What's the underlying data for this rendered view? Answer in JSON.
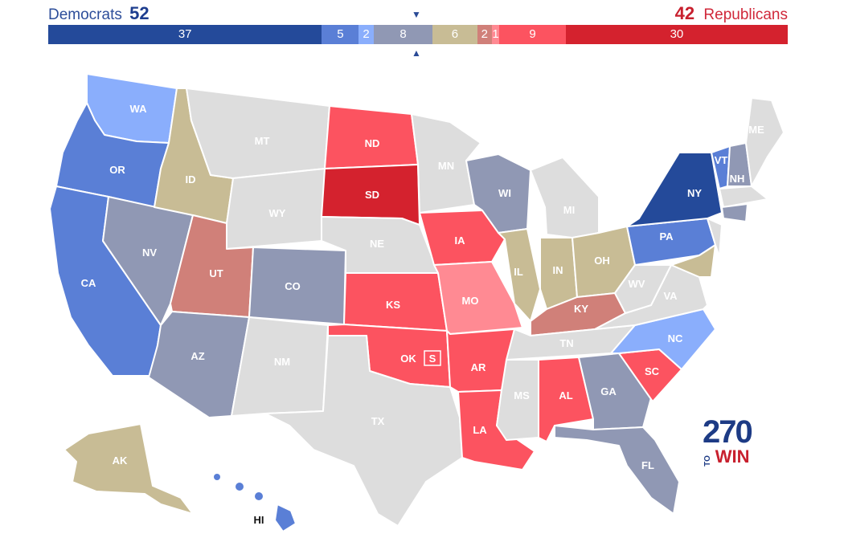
{
  "header": {
    "dem_label": "Democrats",
    "dem_total": "52",
    "rep_total": "42",
    "rep_label": "Republicans"
  },
  "bar": [
    {
      "value": 37,
      "label": "37",
      "color": "#244a9a",
      "category": "safe-dem"
    },
    {
      "value": 5,
      "label": "5",
      "color": "#5a7fd6",
      "category": "likely-dem"
    },
    {
      "value": 2,
      "label": "2",
      "color": "#8aaefc",
      "category": "leans-dem"
    },
    {
      "value": 8,
      "label": "8",
      "color": "#9098b4",
      "category": "tossup"
    },
    {
      "value": 6,
      "label": "6",
      "color": "#c8bc95",
      "category": "tilt-grey"
    },
    {
      "value": 2,
      "label": "2",
      "color": "#d08079",
      "category": "tilt-rep"
    },
    {
      "value": 1,
      "label": "1",
      "color": "#ff8a93",
      "category": "leans-rep"
    },
    {
      "value": 9,
      "label": "9",
      "color": "#fc5360",
      "category": "likely-rep"
    },
    {
      "value": 30,
      "label": "30",
      "color": "#d4222e",
      "category": "safe-rep"
    }
  ],
  "colors": {
    "safe_dem": "#244a9a",
    "likely_dem": "#5a7fd6",
    "leans_dem": "#8aaefc",
    "tossup": "#9098b4",
    "tan": "#c8bc95",
    "tilt_rep": "#d08079",
    "leans_rep": "#ff8a93",
    "likely_rep": "#fc5360",
    "safe_rep": "#d4222e",
    "no_race": "#dddddd",
    "border": "#ffffff"
  },
  "states": {
    "WA": "WA",
    "OR": "OR",
    "CA": "CA",
    "ID": "ID",
    "NV": "NV",
    "MT": "MT",
    "WY": "WY",
    "UT": "UT",
    "AZ": "AZ",
    "CO": "CO",
    "NM": "NM",
    "ND": "ND",
    "SD": "SD",
    "NE": "NE",
    "KS": "KS",
    "OK": "OK",
    "TX": "TX",
    "MN": "MN",
    "IA": "IA",
    "MO": "MO",
    "AR": "AR",
    "LA": "LA",
    "WI": "WI",
    "IL": "IL",
    "MI": "MI",
    "IN": "IN",
    "OH": "OH",
    "KY": "KY",
    "TN": "TN",
    "MS": "MS",
    "AL": "AL",
    "GA": "GA",
    "FL": "FL",
    "SC": "SC",
    "NC": "NC",
    "VA": "VA",
    "WV": "WV",
    "PA": "PA",
    "NY": "NY",
    "VT": "VT",
    "NH": "NH",
    "ME": "ME",
    "AK": "AK",
    "HI": "HI"
  },
  "special_marker": "S",
  "logo": {
    "number": "270",
    "to": "TO",
    "win": "WIN"
  }
}
